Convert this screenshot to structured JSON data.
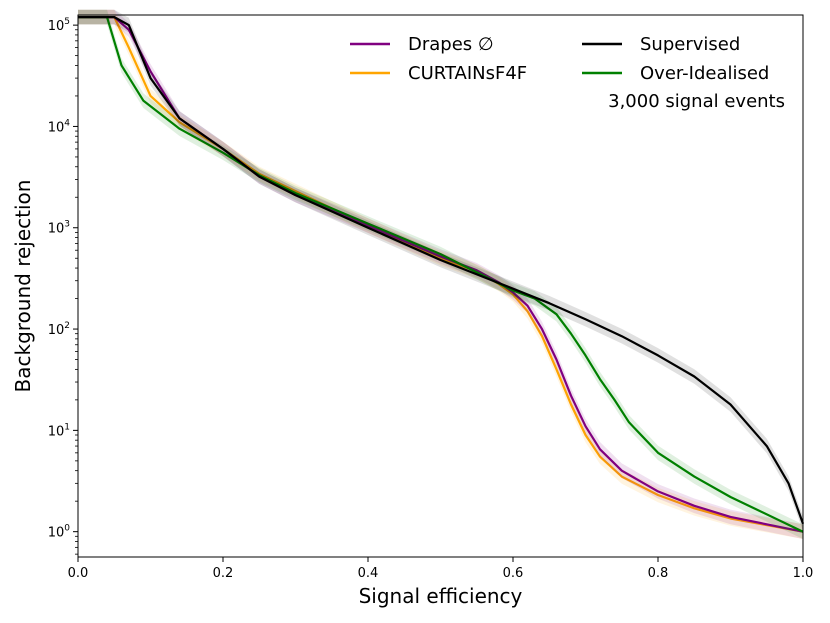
{
  "chart_data": {
    "type": "line",
    "xlabel": "Signal efficiency",
    "ylabel": "Background rejection",
    "xlim": [
      0.0,
      1.0
    ],
    "ylim_log10": [
      -0.25,
      5.1
    ],
    "yscale": "log",
    "x_ticks": [
      {
        "value": 0.0,
        "label": "0.0"
      },
      {
        "value": 0.2,
        "label": "0.2"
      },
      {
        "value": 0.4,
        "label": "0.4"
      },
      {
        "value": 0.6,
        "label": "0.6"
      },
      {
        "value": 0.8,
        "label": "0.8"
      },
      {
        "value": 1.0,
        "label": "1.0"
      }
    ],
    "y_ticks": [
      {
        "exp": 0,
        "base": "10",
        "sup": "0"
      },
      {
        "exp": 1,
        "base": "10",
        "sup": "1"
      },
      {
        "exp": 2,
        "base": "10",
        "sup": "2"
      },
      {
        "exp": 3,
        "base": "10",
        "sup": "3"
      },
      {
        "exp": 4,
        "base": "10",
        "sup": "4"
      },
      {
        "exp": 5,
        "base": "10",
        "sup": "5"
      }
    ],
    "annotation": "3,000 signal events",
    "legend_position": "top-right",
    "series": [
      {
        "name": "Drapes ∅",
        "color": "#800080",
        "x": [
          0.0,
          0.05,
          0.07,
          0.1,
          0.14,
          0.2,
          0.25,
          0.3,
          0.4,
          0.5,
          0.55,
          0.58,
          0.6,
          0.62,
          0.64,
          0.66,
          0.68,
          0.7,
          0.72,
          0.75,
          0.8,
          0.85,
          0.9,
          1.0
        ],
        "y": [
          120000,
          120000,
          90000,
          35000,
          12000,
          6000,
          3200,
          2100,
          1050,
          520,
          380,
          290,
          230,
          170,
          100,
          50,
          22,
          11,
          6.5,
          4.0,
          2.5,
          1.8,
          1.4,
          1.0
        ]
      },
      {
        "name": "CURTAINsF4F",
        "color": "#FFA500",
        "x": [
          0.0,
          0.05,
          0.07,
          0.1,
          0.14,
          0.2,
          0.25,
          0.3,
          0.4,
          0.5,
          0.55,
          0.58,
          0.6,
          0.62,
          0.64,
          0.66,
          0.68,
          0.7,
          0.72,
          0.75,
          0.8,
          0.85,
          0.9,
          1.0
        ],
        "y": [
          120000,
          120000,
          60000,
          20000,
          11000,
          6000,
          3400,
          2300,
          1050,
          500,
          370,
          280,
          220,
          150,
          85,
          40,
          18,
          9,
          5.5,
          3.5,
          2.3,
          1.7,
          1.35,
          1.0
        ]
      },
      {
        "name": "Supervised",
        "color": "#000000",
        "x": [
          0.0,
          0.05,
          0.07,
          0.1,
          0.14,
          0.2,
          0.25,
          0.3,
          0.4,
          0.5,
          0.6,
          0.65,
          0.7,
          0.75,
          0.8,
          0.85,
          0.9,
          0.95,
          0.98,
          1.0
        ],
        "y": [
          120000,
          120000,
          100000,
          30000,
          12000,
          6000,
          3200,
          2100,
          1000,
          480,
          250,
          180,
          125,
          85,
          55,
          34,
          18,
          7,
          3,
          1.2
        ]
      },
      {
        "name": "Over-Idealised",
        "color": "#008000",
        "x": [
          0.0,
          0.04,
          0.06,
          0.09,
          0.14,
          0.2,
          0.25,
          0.3,
          0.4,
          0.5,
          0.6,
          0.63,
          0.66,
          0.68,
          0.7,
          0.72,
          0.74,
          0.76,
          0.8,
          0.85,
          0.9,
          1.0
        ],
        "y": [
          120000,
          120000,
          40000,
          18000,
          9500,
          5500,
          3300,
          2200,
          1100,
          550,
          240,
          200,
          140,
          90,
          55,
          32,
          20,
          12,
          6,
          3.5,
          2.2,
          1.0
        ]
      }
    ]
  }
}
